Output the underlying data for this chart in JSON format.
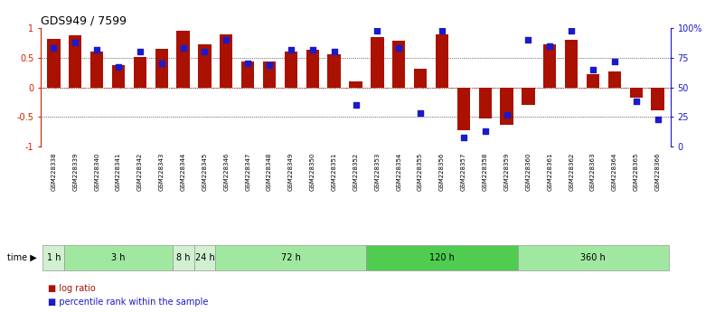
{
  "title": "GDS949 / 7599",
  "samples": [
    "GSM228338",
    "GSM228339",
    "GSM228340",
    "GSM228341",
    "GSM228342",
    "GSM228343",
    "GSM228344",
    "GSM228345",
    "GSM228346",
    "GSM228347",
    "GSM228348",
    "GSM228349",
    "GSM228350",
    "GSM228351",
    "GSM228352",
    "GSM228353",
    "GSM228354",
    "GSM228355",
    "GSM228356",
    "GSM228357",
    "GSM228358",
    "GSM228359",
    "GSM228360",
    "GSM228361",
    "GSM228362",
    "GSM228363",
    "GSM228364",
    "GSM228365",
    "GSM228366"
  ],
  "log_ratio": [
    0.82,
    0.88,
    0.6,
    0.38,
    0.52,
    0.65,
    0.95,
    0.72,
    0.9,
    0.43,
    0.43,
    0.6,
    0.63,
    0.56,
    0.1,
    0.85,
    0.78,
    0.32,
    0.9,
    -0.72,
    -0.52,
    -0.63,
    -0.3,
    0.72,
    0.8,
    0.22,
    0.27,
    -0.17,
    -0.38
  ],
  "percentile_rank": [
    83,
    88,
    82,
    67,
    80,
    70,
    83,
    80,
    90,
    70,
    69,
    82,
    82,
    80,
    35,
    98,
    83,
    28,
    98,
    8,
    13,
    27,
    90,
    85,
    98,
    65,
    72,
    38,
    23
  ],
  "time_groups": [
    {
      "label": "1 h",
      "start": 0,
      "end": 1,
      "color": "#d0f0d0"
    },
    {
      "label": "3 h",
      "start": 1,
      "end": 6,
      "color": "#a0e8a0"
    },
    {
      "label": "8 h",
      "start": 6,
      "end": 7,
      "color": "#d0f0d0"
    },
    {
      "label": "24 h",
      "start": 7,
      "end": 8,
      "color": "#d0f0d0"
    },
    {
      "label": "72 h",
      "start": 8,
      "end": 15,
      "color": "#a0e8a0"
    },
    {
      "label": "120 h",
      "start": 15,
      "end": 22,
      "color": "#50cc50"
    },
    {
      "label": "360 h",
      "start": 22,
      "end": 29,
      "color": "#a0e8a0"
    }
  ],
  "bar_color": "#aa1100",
  "dot_color": "#1a1acc",
  "bg_color": "#ffffff",
  "axis_color_left": "#cc2200",
  "axis_color_right": "#1a1acc",
  "ylim": [
    -1,
    1
  ],
  "yticks_left": [
    -1,
    -0.5,
    0,
    0.5,
    1
  ],
  "ytick_labels_left": [
    "-1",
    "-0.5",
    "0",
    "0.5",
    "1"
  ],
  "ytick_labels_right": [
    "0",
    "25",
    "50",
    "75",
    "100%"
  ],
  "legend_logratio": "log ratio",
  "legend_percentile": "percentile rank within the sample"
}
